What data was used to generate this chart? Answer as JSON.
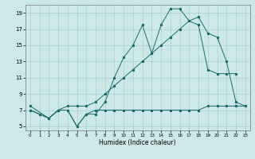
{
  "xlabel": "Humidex (Indice chaleur)",
  "bg_color": "#cce8e8",
  "grid_color": "#aacfcf",
  "line_color": "#1a6b6b",
  "xlim": [
    -0.5,
    23.5
  ],
  "ylim": [
    4.5,
    20
  ],
  "xticks": [
    0,
    1,
    2,
    3,
    4,
    5,
    6,
    7,
    8,
    9,
    10,
    11,
    12,
    13,
    14,
    15,
    16,
    17,
    18,
    19,
    20,
    21,
    22,
    23
  ],
  "yticks": [
    5,
    7,
    9,
    11,
    13,
    15,
    17,
    19
  ],
  "line1_x": [
    0,
    1,
    2,
    3,
    4,
    5,
    6,
    7,
    8,
    9,
    10,
    11,
    12,
    13,
    14,
    15,
    16,
    17,
    18,
    19,
    20,
    21,
    22,
    23
  ],
  "line1_y": [
    7,
    6.5,
    6,
    7,
    7,
    5,
    6.5,
    7,
    7,
    7,
    7,
    7,
    7,
    7,
    7,
    7,
    7,
    7,
    7,
    7.5,
    7.5,
    7.5,
    7.5,
    7.5
  ],
  "line2_x": [
    0,
    1,
    2,
    3,
    4,
    5,
    6,
    7,
    8,
    9,
    10,
    11,
    12,
    13,
    14,
    15,
    16,
    17,
    18,
    19,
    20,
    21,
    22
  ],
  "line2_y": [
    7,
    6.5,
    6,
    7,
    7,
    5,
    6.5,
    6.5,
    8,
    11,
    13.5,
    15,
    17.5,
    14,
    17.5,
    19.5,
    19.5,
    18,
    17.5,
    12,
    11.5,
    11.5,
    11.5
  ],
  "line3_x": [
    0,
    2,
    3,
    4,
    5,
    6,
    7,
    8,
    9,
    10,
    11,
    12,
    13,
    14,
    15,
    16,
    17,
    18,
    19,
    20,
    21,
    22,
    23
  ],
  "line3_y": [
    7.5,
    6,
    7,
    7.5,
    7.5,
    7.5,
    8,
    9,
    10,
    11,
    12,
    13,
    14,
    15,
    16,
    17,
    18,
    18.5,
    16.5,
    16,
    13,
    8,
    7.5
  ]
}
